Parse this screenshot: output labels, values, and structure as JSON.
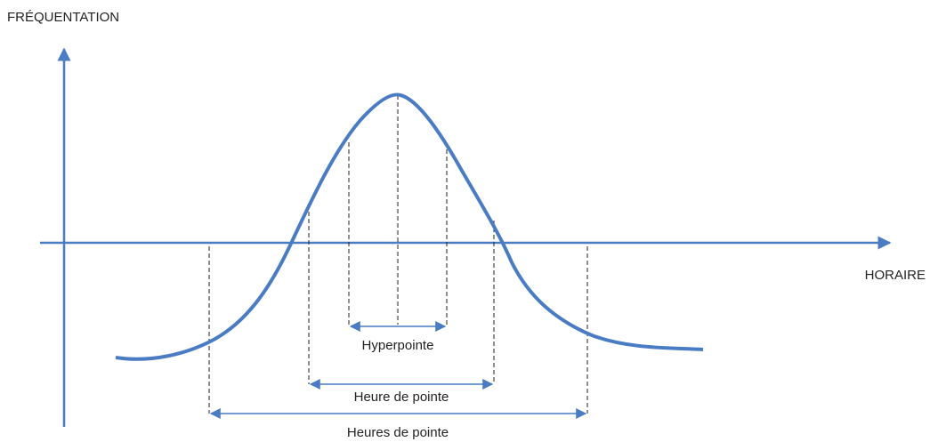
{
  "y_axis_label": "FRÉQUENTATION",
  "x_axis_label": "HORAIRE",
  "spans": [
    {
      "label": "Hyperpointe"
    },
    {
      "label": "Heure de pointe"
    },
    {
      "label": "Heures de pointe"
    }
  ]
}
